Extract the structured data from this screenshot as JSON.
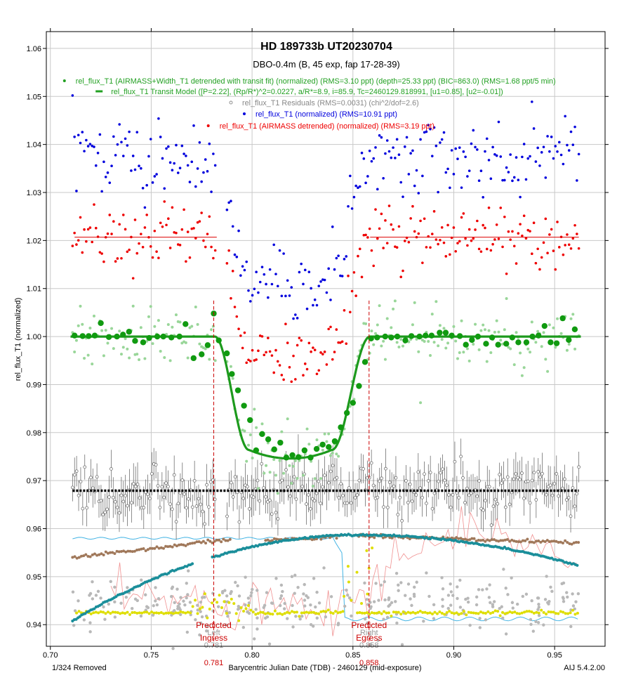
{
  "chart_data": {
    "type": "scatter",
    "title": "HD 189733b UT20230704",
    "subtitle": "DBO-0.4m (B, 45 exp, fap 17-28-39)",
    "xlabel": "Barycentric Julian Date (TDB) - 2460129 (mid-exposure)",
    "ylabel": "rel_flux_T1 (normalized)",
    "xlim": [
      0.698,
      0.975
    ],
    "ylim": [
      0.9355,
      1.0635
    ],
    "x_ticks": [
      0.7,
      0.75,
      0.8,
      0.85,
      0.9,
      0.95
    ],
    "x_tick_labels": [
      "0.70",
      "0.75",
      "0.80",
      "0.85",
      "0.90",
      "0.95"
    ],
    "y_ticks": [
      0.94,
      0.95,
      0.96,
      0.97,
      0.98,
      0.99,
      1.0,
      1.01,
      1.02,
      1.03,
      1.04,
      1.05,
      1.06
    ],
    "y_tick_labels": [
      "0.94",
      "0.95",
      "0.96",
      "0.97",
      "0.98",
      "0.99",
      "1.00",
      "1.01",
      "1.02",
      "1.03",
      "1.04",
      "1.05",
      "1.06"
    ],
    "grid": true,
    "legend_position": "top",
    "legend": [
      {
        "label": "rel_flux_T1 (AIRMASS+Width_T1 detrended with transit fit) (normalized) (RMS=3.10 ppt) (depth=25.33 ppt) (BIC=863.0) (RMS=1.68 ppt/5 min)",
        "color": "#22a022",
        "marker": "dot"
      },
      {
        "label": "rel_flux_T1 Transit Model ([P=2.22], (Rp/R*)^2=0.0227, a/R*=8.9, i=85.9, Tc=2460129.818991, [u1=0.85], [u2=-0.01])",
        "color": "#22a022",
        "marker": "line"
      },
      {
        "label": "rel_flux_T1 Residuals (RMS=0.0031) (chi^2/dof=2.6)",
        "color": "#888888",
        "marker": "circle"
      },
      {
        "label": "rel_flux_T1 (normalized) (RMS=10.91 ppt)",
        "color": "#0000dd",
        "marker": "dot"
      },
      {
        "label": "rel_flux_T1 (AIRMASS detrended) (normalized) (RMS=3.19 ppt)",
        "color": "#ee0000",
        "marker": "dot"
      }
    ],
    "transit_model": {
      "tc": 0.818991,
      "ingress_start": 0.7815,
      "ingress_end": 0.7985,
      "egress_start": 0.8395,
      "egress_end": 0.8585,
      "baseline": 1.0,
      "bottom": 0.9746,
      "x_start": 0.71,
      "x_end": 0.963,
      "color": "#1d9a1d"
    },
    "series": [
      {
        "name": "rel_flux_T1 (normalized)",
        "color": "#0000dd",
        "offset": 1.0368,
        "transit_depth": 0.0265,
        "scatter": 0.0037,
        "x_start": 0.711,
        "x_end": 0.962,
        "n": 260,
        "gap": [
          0.7825,
          0.7875
        ]
      },
      {
        "name": "rel_flux_T1 (AIRMASS detrended) (normalized)",
        "color": "#ee0000",
        "offset": 1.0207,
        "transit_depth": 0.0253,
        "scatter": 0.0031,
        "x_start": 0.711,
        "x_end": 0.962,
        "n": 260,
        "gap": [
          0.7825,
          0.7875
        ]
      },
      {
        "name": "rel_flux_T1 (AIRMASS+Width_T1 detrended with transit fit) (normalized)",
        "color": "#99d699",
        "offset": 1.0,
        "transit_depth": 0.0253,
        "scatter": 0.0031,
        "x_start": 0.711,
        "x_end": 0.962,
        "n": 260,
        "gap": [
          0.7825,
          0.7875
        ]
      },
      {
        "name": "rel_flux_T1 (binned)",
        "color": "#109a10",
        "binned_points": [
          [
            0.712,
            1.0002
          ],
          [
            0.716,
            1.0001
          ],
          [
            0.719,
            1.0001
          ],
          [
            0.722,
            1.0002
          ],
          [
            0.725,
            1.0028
          ],
          [
            0.729,
            0.9999
          ],
          [
            0.733,
            1.0
          ],
          [
            0.736,
            1.0004
          ],
          [
            0.739,
            1.001
          ],
          [
            0.742,
            0.9991
          ],
          [
            0.746,
            0.9988
          ],
          [
            0.749,
            0.9997
          ],
          [
            0.753,
            1.0
          ],
          [
            0.756,
            1.0
          ],
          [
            0.76,
            0.9998
          ],
          [
            0.764,
            1.0
          ],
          [
            0.767,
            1.0026
          ],
          [
            0.771,
            0.9955
          ],
          [
            0.775,
            0.9963
          ],
          [
            0.778,
            0.9982
          ],
          [
            0.781,
            1.0048
          ],
          [
            0.7835,
            0.9992
          ],
          [
            0.7875,
            0.9965
          ],
          [
            0.79,
            0.9922
          ],
          [
            0.793,
            0.9888
          ],
          [
            0.796,
            0.9856
          ],
          [
            0.799,
            0.9826
          ],
          [
            0.802,
            0.9763
          ],
          [
            0.805,
            0.9797
          ],
          [
            0.808,
            0.9786
          ],
          [
            0.811,
            0.9765
          ],
          [
            0.814,
            0.9779
          ],
          [
            0.817,
            0.9748
          ],
          [
            0.82,
            0.9753
          ],
          [
            0.823,
            0.9749
          ],
          [
            0.826,
            0.9763
          ],
          [
            0.829,
            0.9748
          ],
          [
            0.832,
            0.9766
          ],
          [
            0.835,
            0.9775
          ],
          [
            0.838,
            0.977
          ],
          [
            0.841,
            0.9782
          ],
          [
            0.844,
            0.9811
          ],
          [
            0.847,
            0.9841
          ],
          [
            0.85,
            0.9862
          ],
          [
            0.853,
            0.9897
          ],
          [
            0.856,
            0.9947
          ],
          [
            0.859,
            0.9996
          ],
          [
            0.862,
            0.9998
          ],
          [
            0.866,
            1.0
          ],
          [
            0.869,
            0.9998
          ],
          [
            0.872,
            1.0
          ],
          [
            0.876,
            0.9992
          ],
          [
            0.879,
            1.0001
          ],
          [
            0.883,
            1.0
          ],
          [
            0.886,
            1.0002
          ],
          [
            0.889,
            1.0002
          ],
          [
            0.893,
            1.0008
          ],
          [
            0.896,
            1.0008
          ],
          [
            0.899,
            1.0002
          ],
          [
            0.903,
            1.0001
          ],
          [
            0.906,
            0.9983
          ],
          [
            0.909,
            0.9993
          ],
          [
            0.912,
            1.0
          ],
          [
            0.916,
            0.9985
          ],
          [
            0.919,
            0.9998
          ],
          [
            0.922,
            0.9983
          ],
          [
            0.926,
            0.9985
          ],
          [
            0.929,
            0.9998
          ],
          [
            0.932,
            0.9988
          ],
          [
            0.936,
            0.9988
          ],
          [
            0.939,
            1.0
          ],
          [
            0.942,
            1.0002
          ],
          [
            0.945,
            1.0022
          ],
          [
            0.948,
            0.9988
          ],
          [
            0.951,
            0.9986
          ],
          [
            0.954,
            1.0038
          ],
          [
            0.957,
            0.9993
          ],
          [
            0.96,
            1.0015
          ]
        ]
      },
      {
        "name": "rel_flux_T1 Residuals",
        "color": "#888888",
        "offset": 0.9679,
        "scatter": 0.0031,
        "errorbar": 0.0035,
        "x_start": 0.711,
        "x_end": 0.962,
        "n": 250,
        "gap": [
          0.7825,
          0.7875
        ]
      },
      {
        "name": "Residual baseline",
        "color": "#000000",
        "y": 0.9679
      }
    ],
    "aux_series": [
      {
        "name": "teal",
        "color": "#1a8e9a",
        "shape": "parabola",
        "x_start": 0.711,
        "x_end": 0.962,
        "y_start": 0.9408,
        "y_peak": 0.9587,
        "x_peak": 0.853,
        "y_end": 0.9523
      },
      {
        "name": "brown",
        "color": "#a0785a",
        "shape": "segments"
      },
      {
        "name": "yellow",
        "color": "#dede00",
        "shape": "segments"
      },
      {
        "name": "light-gray",
        "color": "#b8b8b8",
        "shape": "noise",
        "level": 0.9445,
        "scatter": 0.0028
      },
      {
        "name": "cyan",
        "color": "#44b4e4",
        "shape": "step",
        "level_a": 0.958,
        "level_b": 0.9412,
        "step_x": 0.8445
      },
      {
        "name": "pink",
        "color": "#f09090",
        "shape": "noise-line",
        "level": 0.945,
        "scatter": 0.004
      }
    ],
    "markers": [
      {
        "x": 0.781,
        "label": "Predicted\nIngress",
        "sub_label": "Left",
        "value_label": "0.781",
        "value_label_lower": "0.781",
        "color": "#cc0000"
      },
      {
        "x": 0.858,
        "label": "Predicted\nEgress",
        "sub_label": "Right",
        "value_label": "0.858",
        "value_label_lower": "0.858",
        "color": "#cc0000"
      }
    ],
    "footer_left": "1/324 Removed",
    "footer_right": "AIJ 5.4.2.00"
  }
}
